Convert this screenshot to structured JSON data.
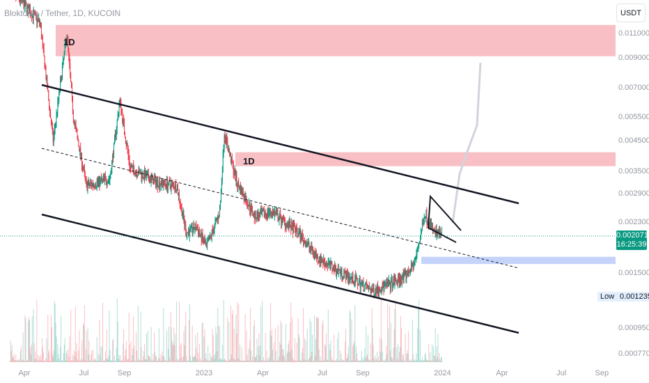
{
  "header": {
    "title": "Bloktopia / Tether, 1D, KUCOIN",
    "currency": "USDT"
  },
  "annotations": {
    "zone_upper_label": "1D",
    "zone_mid_label": "1D"
  },
  "last_price": {
    "value": "0.002071",
    "countdown": "16:25:39",
    "color": "#089981"
  },
  "low_marker": {
    "label": "Low",
    "value": "0.001235"
  },
  "colors": {
    "up": "#089981",
    "down": "#f23645",
    "resistance_zone": "#f8c0c4",
    "support_zone": "#c5d3fb"
  },
  "chart_data": {
    "type": "candlestick",
    "y_scale": "log",
    "y_ticks": [
      "0.011000",
      "0.009000",
      "0.007000",
      "0.005500",
      "0.004500",
      "0.003500",
      "0.002900",
      "0.002300",
      "0.001500",
      "0.000950",
      "0.000770"
    ],
    "x_ticks": [
      {
        "label": "Apr",
        "date": "2022-04-01"
      },
      {
        "label": "Jul",
        "date": "2022-07-01"
      },
      {
        "label": "Sep",
        "date": "2022-09-01"
      },
      {
        "label": "2023",
        "date": "2023-01-01"
      },
      {
        "label": "Apr",
        "date": "2023-04-01"
      },
      {
        "label": "Jul",
        "date": "2023-07-01"
      },
      {
        "label": "Sep",
        "date": "2023-09-01"
      },
      {
        "label": "2024",
        "date": "2024-01-01"
      },
      {
        "label": "Apr",
        "date": "2024-04-01"
      },
      {
        "label": "Jul",
        "date": "2024-07-01"
      },
      {
        "label": "Sep",
        "date": "2024-09-01"
      }
    ],
    "price_path": [
      [
        "2022-03-10",
        0.016
      ],
      [
        "2022-04-25",
        0.012
      ],
      [
        "2022-05-15",
        0.0045
      ],
      [
        "2022-06-05",
        0.011
      ],
      [
        "2022-06-15",
        0.0055
      ],
      [
        "2022-07-05",
        0.0031
      ],
      [
        "2022-08-10",
        0.0033
      ],
      [
        "2022-08-25",
        0.0063
      ],
      [
        "2022-09-10",
        0.0036
      ],
      [
        "2022-10-20",
        0.0032
      ],
      [
        "2022-11-20",
        0.0031
      ],
      [
        "2022-12-05",
        0.0021
      ],
      [
        "2022-12-20",
        0.0022
      ],
      [
        "2023-01-05",
        0.00186
      ],
      [
        "2023-01-25",
        0.0025
      ],
      [
        "2023-02-01",
        0.0048
      ],
      [
        "2023-02-20",
        0.0032
      ],
      [
        "2023-03-20",
        0.0024
      ],
      [
        "2023-04-15",
        0.0025
      ],
      [
        "2023-05-25",
        0.0021
      ],
      [
        "2023-06-25",
        0.0017
      ],
      [
        "2023-08-05",
        0.00148
      ],
      [
        "2023-09-15",
        0.0013
      ],
      [
        "2023-10-10",
        0.00136
      ],
      [
        "2023-11-05",
        0.00146
      ],
      [
        "2023-11-20",
        0.00165
      ],
      [
        "2023-12-05",
        0.00246
      ],
      [
        "2023-12-20",
        0.00209
      ],
      [
        "2023-12-31",
        0.002071
      ]
    ],
    "zones": [
      {
        "type": "resistance",
        "label": "1D",
        "from": 0.0091,
        "to": 0.0118
      },
      {
        "type": "resistance",
        "label": "1D",
        "from": 0.00365,
        "to": 0.0041
      },
      {
        "type": "support",
        "from": 0.00162,
        "to": 0.00172
      }
    ],
    "grid": false
  }
}
